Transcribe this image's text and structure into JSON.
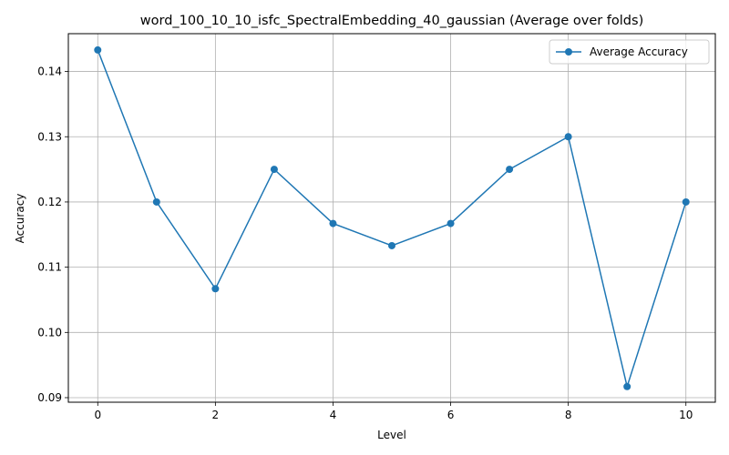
{
  "chart_data": {
    "type": "line",
    "title": "word_100_10_10_isfc_SpectralEmbedding_40_gaussian (Average over folds)",
    "xlabel": "Level",
    "ylabel": "Accuracy",
    "xlim": [
      -0.5,
      10.5
    ],
    "ylim": [
      0.0893,
      0.1458
    ],
    "xticks": [
      0,
      2,
      4,
      6,
      8,
      10
    ],
    "xtick_labels": [
      "0",
      "2",
      "4",
      "6",
      "8",
      "10"
    ],
    "yticks": [
      0.09,
      0.1,
      0.11,
      0.12,
      0.13,
      0.14
    ],
    "ytick_labels": [
      "0.09",
      "0.10",
      "0.11",
      "0.12",
      "0.13",
      "0.14"
    ],
    "grid": true,
    "legend_position": "top-right",
    "series": [
      {
        "name": "Average Accuracy",
        "color": "#1f77b4",
        "marker": "circle",
        "x": [
          0,
          1,
          2,
          3,
          4,
          5,
          6,
          7,
          8,
          9,
          10
        ],
        "y": [
          0.1433,
          0.12,
          0.1067,
          0.125,
          0.1167,
          0.1133,
          0.1167,
          0.125,
          0.13,
          0.0917,
          0.12
        ]
      }
    ]
  }
}
